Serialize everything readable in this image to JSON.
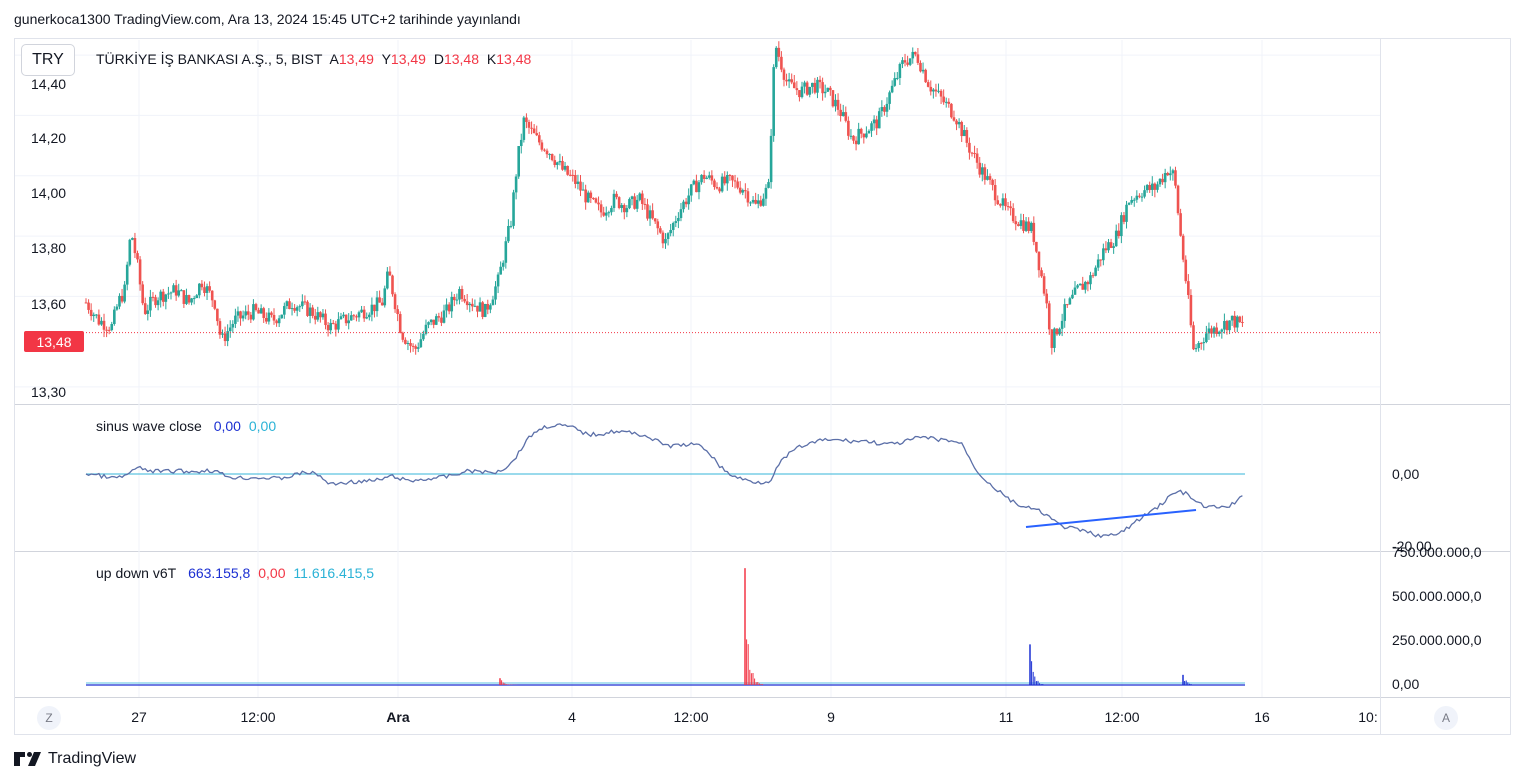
{
  "header": {
    "published": "gunerkoca1300 TradingView.com, Ara 13, 2024 15:45 UTC+2 tarihinde yayınlandı"
  },
  "currency_button": "TRY",
  "symbol_legend": {
    "title": "TÜRKİYE İŞ BANKASI A.Ş., 5, BIST",
    "open_label": "A",
    "open_value": "13,49",
    "high_label": "Y",
    "high_value": "13,49",
    "low_label": "D",
    "low_value": "13,48",
    "close_label": "K",
    "close_value": "13,48"
  },
  "price_axis_labels": [
    "14,40",
    "14,20",
    "14,00",
    "13,80",
    "13,60",
    "13,30"
  ],
  "last_price_tag": "13,48",
  "sinus_legend": {
    "name": "sinus wave close",
    "v1": "0,00",
    "v2": "0,00"
  },
  "sinus_axis_labels": [
    "0,00",
    "-20,00"
  ],
  "updown_legend": {
    "name": "up down v6T",
    "v1": "663.155,8",
    "v2": "0,00",
    "v3": "11.616.415,5"
  },
  "updown_axis_labels": [
    "750.000.000,0",
    "500.000.000,0",
    "250.000.000,0",
    "0,00"
  ],
  "time_axis_labels": [
    "27",
    "12:00",
    "Ara",
    "4",
    "12:00",
    "9",
    "11",
    "12:00",
    "16",
    "10:"
  ],
  "buttons": {
    "left_scale": "Z",
    "right_scale": "A"
  },
  "brand": "TradingView",
  "colors": {
    "up": "#26a69a",
    "down": "#ef5350",
    "sinus": "#5b6fa8",
    "zero_line": "#5ec3e0",
    "trendline": "#2962ff",
    "volume_up": "#f23645",
    "volume_down": "#1b2fd2"
  },
  "chart_data": [
    {
      "type": "candlestick",
      "title": "TÜRKİYE İŞ BANKASI A.Ş., 5, BIST",
      "ylim": [
        13.25,
        14.45
      ],
      "last_price": 13.48,
      "approx_close_path": [
        [
          0,
          13.58
        ],
        [
          4,
          13.52
        ],
        [
          8,
          13.5
        ],
        [
          10,
          13.58
        ],
        [
          12,
          13.62
        ],
        [
          14,
          13.82
        ],
        [
          16,
          13.7
        ],
        [
          18,
          13.55
        ],
        [
          22,
          13.6
        ],
        [
          28,
          13.62
        ],
        [
          32,
          13.58
        ],
        [
          36,
          13.65
        ],
        [
          40,
          13.58
        ],
        [
          42,
          13.45
        ],
        [
          46,
          13.52
        ],
        [
          52,
          13.55
        ],
        [
          58,
          13.52
        ],
        [
          64,
          13.58
        ],
        [
          70,
          13.55
        ],
        [
          76,
          13.5
        ],
        [
          80,
          13.52
        ],
        [
          86,
          13.55
        ],
        [
          92,
          13.58
        ],
        [
          94,
          13.68
        ],
        [
          98,
          13.48
        ],
        [
          102,
          13.42
        ],
        [
          106,
          13.5
        ],
        [
          112,
          13.55
        ],
        [
          116,
          13.62
        ],
        [
          120,
          13.58
        ],
        [
          124,
          13.55
        ],
        [
          128,
          13.65
        ],
        [
          132,
          13.85
        ],
        [
          134,
          14.05
        ],
        [
          136,
          14.18
        ],
        [
          140,
          14.12
        ],
        [
          144,
          14.08
        ],
        [
          148,
          14.02
        ],
        [
          152,
          13.98
        ],
        [
          156,
          13.92
        ],
        [
          160,
          13.88
        ],
        [
          164,
          13.92
        ],
        [
          168,
          13.9
        ],
        [
          172,
          13.92
        ],
        [
          176,
          13.85
        ],
        [
          180,
          13.78
        ],
        [
          184,
          13.88
        ],
        [
          188,
          13.95
        ],
        [
          192,
          14.0
        ],
        [
          196,
          13.97
        ],
        [
          200,
          13.98
        ],
        [
          204,
          13.96
        ],
        [
          208,
          13.9
        ],
        [
          212,
          13.96
        ],
        [
          214,
          14.44
        ],
        [
          218,
          14.3
        ],
        [
          222,
          14.28
        ],
        [
          226,
          14.3
        ],
        [
          230,
          14.28
        ],
        [
          234,
          14.22
        ],
        [
          238,
          14.12
        ],
        [
          242,
          14.15
        ],
        [
          246,
          14.18
        ],
        [
          250,
          14.28
        ],
        [
          254,
          14.38
        ],
        [
          258,
          14.4
        ],
        [
          262,
          14.3
        ],
        [
          266,
          14.25
        ],
        [
          270,
          14.2
        ],
        [
          274,
          14.1
        ],
        [
          278,
          14.02
        ],
        [
          282,
          13.95
        ],
        [
          286,
          13.88
        ],
        [
          290,
          13.85
        ],
        [
          294,
          13.82
        ],
        [
          298,
          13.6
        ],
        [
          300,
          13.45
        ],
        [
          304,
          13.55
        ],
        [
          308,
          13.62
        ],
        [
          312,
          13.66
        ],
        [
          316,
          13.75
        ],
        [
          320,
          13.8
        ],
        [
          324,
          13.92
        ],
        [
          328,
          13.95
        ],
        [
          332,
          13.96
        ],
        [
          336,
          14.02
        ],
        [
          338,
          14.0
        ],
        [
          340,
          13.8
        ],
        [
          342,
          13.62
        ],
        [
          344,
          13.42
        ],
        [
          348,
          13.48
        ],
        [
          352,
          13.5
        ],
        [
          356,
          13.52
        ],
        [
          360,
          13.5
        ]
      ]
    },
    {
      "type": "line",
      "title": "sinus wave close",
      "series": [
        {
          "name": "sinus wave close"
        }
      ],
      "zero_level": 0.0
    },
    {
      "type": "bar",
      "title": "up down v6T",
      "ylim": [
        0,
        750000000
      ],
      "spikes": [
        {
          "at_label": "3 Ara",
          "value": 40000000
        },
        {
          "at_label": "6 Ara",
          "value": 690000000
        },
        {
          "at_label": "11 Ara",
          "value": 240000000
        },
        {
          "at_label": "13 Ara",
          "value": 60000000
        }
      ]
    }
  ]
}
